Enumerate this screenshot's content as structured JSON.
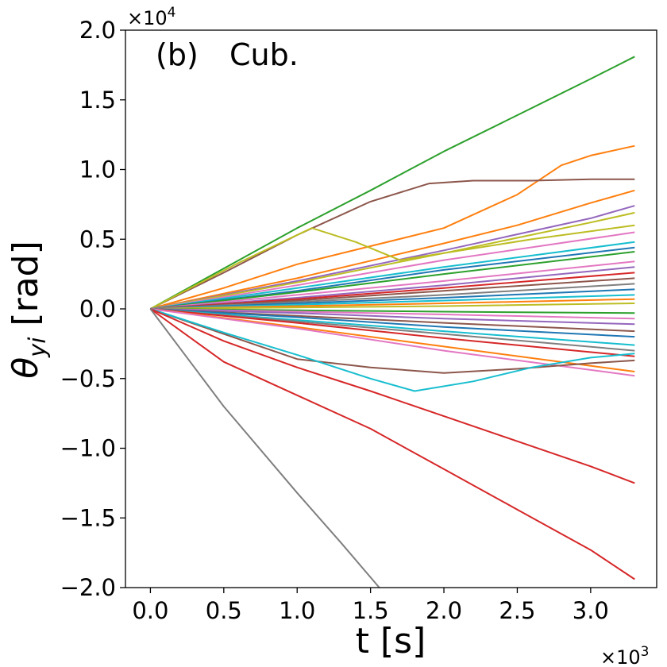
{
  "chart_data": {
    "type": "line",
    "panel_label": "(b)",
    "panel_title": "Cub.",
    "xlabel": "t [s]",
    "ylabel_symbol": "θ",
    "ylabel_subscript": "yi",
    "ylabel_unit": "[rad]",
    "x_multiplier": "×10",
    "x_multiplier_exp": "3",
    "y_multiplier": "×10",
    "y_multiplier_exp": "4",
    "xlim": [
      -0.17,
      3.45
    ],
    "ylim": [
      -2.0,
      2.0
    ],
    "x_ticks": [
      "0.0",
      "0.5",
      "1.0",
      "1.5",
      "2.0",
      "2.5",
      "3.0"
    ],
    "y_ticks": [
      "2.0",
      "1.5",
      "1.0",
      "0.5",
      "0.0",
      "−0.5",
      "−1.0",
      "−1.5",
      "−2.0"
    ],
    "x_tick_values": [
      0.0,
      0.5,
      1.0,
      1.5,
      2.0,
      2.5,
      3.0
    ],
    "y_tick_values": [
      2.0,
      1.5,
      1.0,
      0.5,
      0.0,
      -0.5,
      -1.0,
      -1.5,
      -2.0
    ],
    "series": [
      {
        "name": "s1",
        "color": "#2ca02c",
        "x": [
          0,
          0.5,
          1.0,
          1.5,
          2.0,
          2.5,
          3.0,
          3.3
        ],
        "y": [
          0,
          0.29,
          0.58,
          0.85,
          1.13,
          1.39,
          1.65,
          1.81
        ]
      },
      {
        "name": "s2",
        "color": "#ff7f0e",
        "x": [
          0,
          0.5,
          1.0,
          1.5,
          2.0,
          2.5,
          2.8,
          3.0,
          3.3
        ],
        "y": [
          0,
          0.15,
          0.32,
          0.45,
          0.58,
          0.82,
          1.03,
          1.1,
          1.17
        ]
      },
      {
        "name": "s3",
        "color": "#8c564b",
        "x": [
          0,
          0.5,
          1.0,
          1.5,
          1.9,
          2.2,
          2.6,
          3.0,
          3.3
        ],
        "y": [
          0,
          0.26,
          0.53,
          0.77,
          0.9,
          0.92,
          0.92,
          0.93,
          0.93
        ]
      },
      {
        "name": "s4",
        "color": "#ff7f0e",
        "x": [
          0,
          1.0,
          2.0,
          2.5,
          3.0,
          3.3
        ],
        "y": [
          0,
          0.22,
          0.47,
          0.6,
          0.76,
          0.85
        ]
      },
      {
        "name": "s5",
        "color": "#9467bd",
        "x": [
          0,
          1.0,
          2.0,
          3.0,
          3.3
        ],
        "y": [
          0,
          0.2,
          0.42,
          0.65,
          0.74
        ]
      },
      {
        "name": "s6",
        "color": "#bcbd22",
        "x": [
          0,
          1.0,
          2.0,
          3.0,
          3.3
        ],
        "y": [
          0,
          0.19,
          0.4,
          0.62,
          0.69
        ]
      },
      {
        "name": "s7",
        "color": "#bcbd22",
        "x": [
          0,
          0.6,
          1.1,
          1.4,
          1.7,
          2.0,
          2.6,
          3.3
        ],
        "y": [
          0,
          0.33,
          0.58,
          0.48,
          0.35,
          0.4,
          0.5,
          0.6
        ]
      },
      {
        "name": "s8",
        "color": "#e377c2",
        "x": [
          0,
          1.0,
          2.0,
          3.3
        ],
        "y": [
          0,
          0.17,
          0.35,
          0.55
        ]
      },
      {
        "name": "s9",
        "color": "#17becf",
        "x": [
          0,
          1.0,
          2.0,
          3.3
        ],
        "y": [
          0,
          0.15,
          0.3,
          0.48
        ]
      },
      {
        "name": "s10",
        "color": "#1f77b4",
        "x": [
          0,
          1.0,
          2.0,
          3.3
        ],
        "y": [
          0,
          0.13,
          0.28,
          0.44
        ]
      },
      {
        "name": "s11",
        "color": "#2ca02c",
        "x": [
          0,
          1.0,
          2.0,
          3.3
        ],
        "y": [
          0,
          0.12,
          0.25,
          0.41
        ]
      },
      {
        "name": "s12",
        "color": "#e377c2",
        "x": [
          0,
          1.0,
          2.0,
          3.3
        ],
        "y": [
          0,
          0.1,
          0.2,
          0.34
        ]
      },
      {
        "name": "s13",
        "color": "#9467bd",
        "x": [
          0,
          1.0,
          2.0,
          3.3
        ],
        "y": [
          0,
          0.08,
          0.17,
          0.3
        ]
      },
      {
        "name": "s14",
        "color": "#d62728",
        "x": [
          0,
          1.0,
          2.0,
          3.3
        ],
        "y": [
          0,
          0.07,
          0.15,
          0.26
        ]
      },
      {
        "name": "s15",
        "color": "#8c564b",
        "x": [
          0,
          1.0,
          2.0,
          3.3
        ],
        "y": [
          0,
          0.06,
          0.13,
          0.22
        ]
      },
      {
        "name": "s16",
        "color": "#7f7f7f",
        "x": [
          0,
          1.0,
          2.0,
          3.3
        ],
        "y": [
          0,
          0.05,
          0.1,
          0.18
        ]
      },
      {
        "name": "s17",
        "color": "#1f77b4",
        "x": [
          0,
          1.0,
          2.0,
          3.3
        ],
        "y": [
          0,
          0.04,
          0.08,
          0.14
        ]
      },
      {
        "name": "s18",
        "color": "#17becf",
        "x": [
          0,
          1.0,
          2.0,
          3.3
        ],
        "y": [
          0,
          0.03,
          0.06,
          0.1
        ]
      },
      {
        "name": "s19",
        "color": "#ff7f0e",
        "x": [
          0,
          1.0,
          2.0,
          3.3
        ],
        "y": [
          0,
          0.02,
          0.04,
          0.07
        ]
      },
      {
        "name": "s20",
        "color": "#bcbd22",
        "x": [
          0,
          1.0,
          2.0,
          3.3
        ],
        "y": [
          0,
          0.01,
          0.02,
          0.04
        ]
      },
      {
        "name": "s21",
        "color": "#2ca02c",
        "x": [
          0,
          1.0,
          2.0,
          3.3
        ],
        "y": [
          0,
          -0.01,
          -0.02,
          -0.03
        ]
      },
      {
        "name": "s22",
        "color": "#e377c2",
        "x": [
          0,
          1.0,
          2.0,
          3.3
        ],
        "y": [
          0,
          -0.02,
          -0.04,
          -0.07
        ]
      },
      {
        "name": "s23",
        "color": "#9467bd",
        "x": [
          0,
          1.0,
          2.0,
          3.3
        ],
        "y": [
          0,
          -0.03,
          -0.07,
          -0.11
        ]
      },
      {
        "name": "s24",
        "color": "#8c564b",
        "x": [
          0,
          1.0,
          2.0,
          3.3
        ],
        "y": [
          0,
          -0.05,
          -0.1,
          -0.16
        ]
      },
      {
        "name": "s25",
        "color": "#1f77b4",
        "x": [
          0,
          1.0,
          2.0,
          3.3
        ],
        "y": [
          0,
          -0.06,
          -0.13,
          -0.2
        ]
      },
      {
        "name": "s26",
        "color": "#17becf",
        "x": [
          0,
          1.0,
          2.0,
          3.3
        ],
        "y": [
          0,
          -0.08,
          -0.16,
          -0.26
        ]
      },
      {
        "name": "s27",
        "color": "#7f7f7f",
        "x": [
          0,
          1.0,
          2.0,
          3.3
        ],
        "y": [
          0,
          -0.09,
          -0.18,
          -0.3
        ]
      },
      {
        "name": "s28",
        "color": "#d62728",
        "x": [
          0,
          1.0,
          2.0,
          3.3
        ],
        "y": [
          0,
          -0.1,
          -0.21,
          -0.34
        ]
      },
      {
        "name": "s29",
        "color": "#ff7f0e",
        "x": [
          0,
          1.0,
          2.0,
          3.3
        ],
        "y": [
          0,
          -0.13,
          -0.27,
          -0.45
        ]
      },
      {
        "name": "s30",
        "color": "#e377c2",
        "x": [
          0,
          1.0,
          2.0,
          3.3
        ],
        "y": [
          0,
          -0.14,
          -0.3,
          -0.48
        ]
      },
      {
        "name": "s31",
        "color": "#8c564b",
        "x": [
          0,
          0.5,
          1.0,
          1.5,
          2.0,
          2.5,
          3.0,
          3.3
        ],
        "y": [
          0,
          -0.18,
          -0.36,
          -0.42,
          -0.46,
          -0.43,
          -0.39,
          -0.37
        ]
      },
      {
        "name": "s32",
        "color": "#17becf",
        "x": [
          0,
          0.5,
          1.0,
          1.5,
          1.8,
          2.2,
          2.6,
          3.0,
          3.3
        ],
        "y": [
          0,
          -0.17,
          -0.33,
          -0.5,
          -0.59,
          -0.52,
          -0.42,
          -0.35,
          -0.32
        ]
      },
      {
        "name": "s33",
        "color": "#d62728",
        "x": [
          0,
          0.5,
          1.0,
          1.5,
          2.0,
          2.5,
          3.0,
          3.3
        ],
        "y": [
          0,
          -0.23,
          -0.42,
          -0.59,
          -0.77,
          -0.95,
          -1.13,
          -1.25
        ]
      },
      {
        "name": "s34",
        "color": "#d62728",
        "x": [
          0,
          0.5,
          1.0,
          1.5,
          2.0,
          2.5,
          3.0,
          3.3
        ],
        "y": [
          0,
          -0.38,
          -0.62,
          -0.86,
          -1.15,
          -1.44,
          -1.73,
          -1.94
        ]
      },
      {
        "name": "s35",
        "color": "#7f7f7f",
        "x": [
          0,
          0.5,
          1.0,
          1.3,
          1.56
        ],
        "y": [
          0,
          -0.7,
          -1.32,
          -1.68,
          -2.0
        ]
      }
    ]
  }
}
